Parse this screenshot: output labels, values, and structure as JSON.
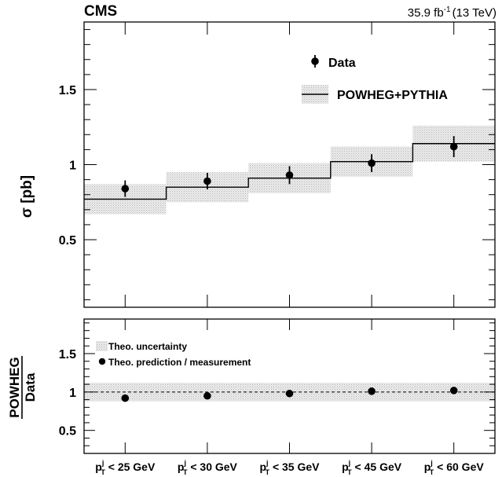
{
  "header": {
    "experiment": "CMS",
    "lumi": "35.9 fb",
    "lumi_sup": "-1",
    "energy": "(13 TeV)"
  },
  "chart_data": [
    {
      "type": "histogram",
      "ylabel": "σ [pb]",
      "ylim": [
        0.05,
        1.95
      ],
      "yticks": [
        0.5,
        1,
        1.5
      ],
      "ytick_labels": [
        "0.5",
        "1",
        "1.5"
      ],
      "categories": [
        "p_T^j < 25 GeV",
        "p_T^j < 30 GeV",
        "p_T^j < 35 GeV",
        "p_T^j < 45 GeV",
        "p_T^j < 60 GeV"
      ],
      "legend": {
        "data": "Data",
        "mc": "POWHEG+PYTHIA",
        "position": "top-right"
      },
      "series": [
        {
          "name": "Data",
          "style": "points",
          "values": [
            0.84,
            0.89,
            0.93,
            1.01,
            1.12
          ],
          "err": [
            0.055,
            0.055,
            0.06,
            0.06,
            0.07
          ]
        },
        {
          "name": "POWHEG+PYTHIA",
          "style": "step",
          "values": [
            0.77,
            0.85,
            0.91,
            1.02,
            1.14
          ],
          "band": [
            [
              0.67,
              0.87
            ],
            [
              0.75,
              0.95
            ],
            [
              0.81,
              1.01
            ],
            [
              0.92,
              1.12
            ],
            [
              1.02,
              1.26
            ]
          ]
        }
      ]
    },
    {
      "type": "ratio",
      "ylabel_top": "POWHEG",
      "ylabel_bottom": "Data",
      "ylim": [
        0.2,
        1.95
      ],
      "yticks": [
        0.5,
        1,
        1.5
      ],
      "ytick_labels": [
        "0.5",
        "1",
        "1.5"
      ],
      "reference": 1,
      "legend": {
        "band": "Theo. uncertainty",
        "points": "Theo. prediction / measurement",
        "position": "top-left"
      },
      "series": [
        {
          "name": "Theo. prediction / measurement",
          "style": "points",
          "values": [
            0.92,
            0.95,
            0.98,
            1.01,
            1.02
          ]
        },
        {
          "name": "Theo. uncertainty",
          "style": "band",
          "values": [
            [
              0.88,
              1.12
            ],
            [
              0.88,
              1.12
            ],
            [
              0.88,
              1.12
            ],
            [
              0.88,
              1.12
            ],
            [
              0.88,
              1.12
            ]
          ]
        }
      ]
    }
  ],
  "x_tick_labels": [
    {
      "p": "p",
      "sup": "j",
      "sub": "T",
      "rest": " < 25 GeV"
    },
    {
      "p": "p",
      "sup": "j",
      "sub": "T",
      "rest": " < 30 GeV"
    },
    {
      "p": "p",
      "sup": "j",
      "sub": "T",
      "rest": " < 35 GeV"
    },
    {
      "p": "p",
      "sup": "j",
      "sub": "T",
      "rest": " < 45 GeV"
    },
    {
      "p": "p",
      "sup": "j",
      "sub": "T",
      "rest": " < 60 GeV"
    }
  ],
  "colors": {
    "band": "#d8d8d8",
    "line": "#000000",
    "marker": "#000000"
  }
}
